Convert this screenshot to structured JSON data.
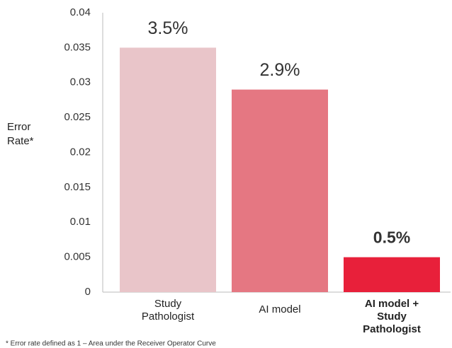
{
  "chart_data": {
    "type": "bar",
    "y_label": "Error Rate*",
    "categories": [
      "Study Pathologist",
      "AI model",
      "AI model + Study Pathologist"
    ],
    "values": [
      0.035,
      0.029,
      0.005
    ],
    "value_labels": [
      "3.5%",
      "2.9%",
      "0.5%"
    ],
    "colors": [
      "#e9c5c9",
      "#e57782",
      "#e8203a"
    ],
    "ylim": [
      0,
      0.04
    ],
    "yticks": [
      0,
      0.005,
      0.01,
      0.015,
      0.02,
      0.025,
      0.03,
      0.035,
      0.04
    ],
    "footnote": "* Error rate defined as 1 – Area under the Receiver Operator Curve"
  }
}
